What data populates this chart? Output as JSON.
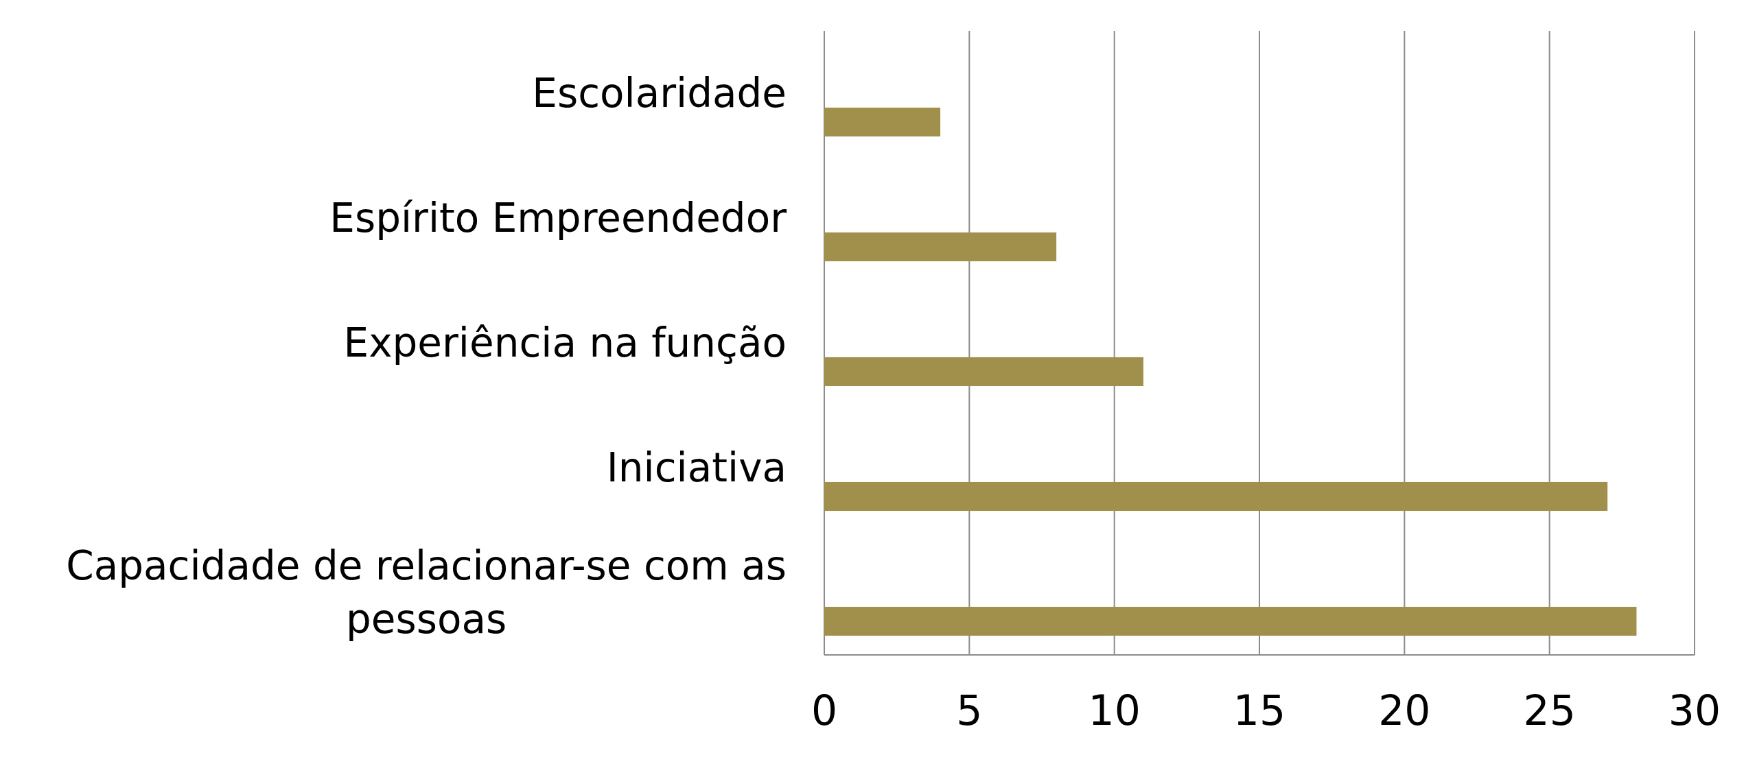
{
  "chart_data": {
    "type": "bar",
    "orientation": "horizontal",
    "categories": [
      "Escolaridade",
      "Espírito Empreendedor",
      "Experiência na função",
      "Iniciativa",
      "Capacidade de relacionar-se com as pessoas"
    ],
    "values": [
      4,
      8,
      11,
      27,
      28
    ],
    "color": "#a18f4c",
    "xlim": [
      0,
      30
    ],
    "xticks": [
      0,
      5,
      10,
      15,
      20,
      25,
      30
    ],
    "grid": "x"
  }
}
